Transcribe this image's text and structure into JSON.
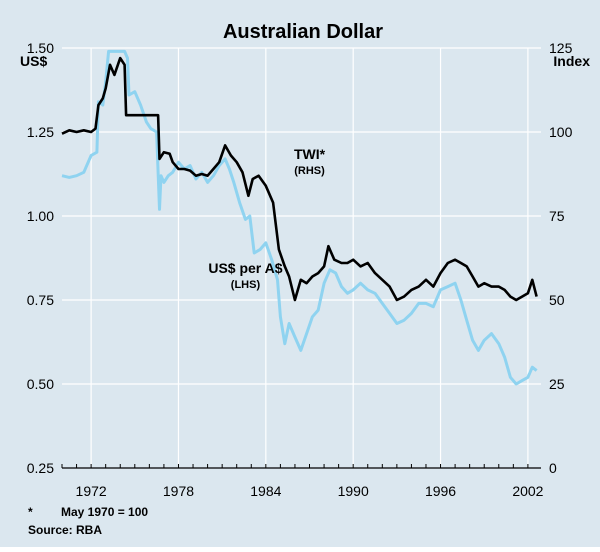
{
  "chart_data": {
    "type": "line",
    "title": "Australian Dollar",
    "left_axis": {
      "unit": "US$",
      "ylim": [
        0.25,
        1.5
      ],
      "ticks": [
        0.25,
        0.5,
        0.75,
        1.0,
        1.25,
        1.5
      ],
      "tick_labels": [
        "0.25",
        "0.50",
        "0.75",
        "1.00",
        "1.25",
        "1.50"
      ]
    },
    "right_axis": {
      "unit": "Index",
      "ylim": [
        0,
        125
      ],
      "ticks": [
        0,
        25,
        50,
        75,
        100,
        125
      ],
      "tick_labels": [
        "0",
        "25",
        "50",
        "75",
        "100",
        "125"
      ]
    },
    "x_axis": {
      "xlim": [
        1970.0,
        2002.9
      ],
      "ticks": [
        1972,
        1978,
        1984,
        1990,
        1996,
        2002
      ],
      "tick_labels": [
        "1972",
        "1978",
        "1984",
        "1990",
        "1996",
        "2002"
      ]
    },
    "grid": true,
    "series": [
      {
        "name": "US$ per A$",
        "sub": "(LHS)",
        "axis": "left",
        "color": "#8fd3f0",
        "label_pos": {
          "x": 1982.6,
          "y": 0.83
        },
        "points": [
          [
            1970.0,
            1.12
          ],
          [
            1970.5,
            1.115
          ],
          [
            1971.0,
            1.12
          ],
          [
            1971.5,
            1.13
          ],
          [
            1972.0,
            1.18
          ],
          [
            1972.4,
            1.19
          ],
          [
            1972.5,
            1.34
          ],
          [
            1972.8,
            1.33
          ],
          [
            1973.0,
            1.4
          ],
          [
            1973.2,
            1.49
          ],
          [
            1974.3,
            1.49
          ],
          [
            1974.5,
            1.47
          ],
          [
            1974.6,
            1.36
          ],
          [
            1975.0,
            1.37
          ],
          [
            1975.4,
            1.33
          ],
          [
            1975.8,
            1.28
          ],
          [
            1976.1,
            1.26
          ],
          [
            1976.5,
            1.25
          ],
          [
            1976.7,
            1.02
          ],
          [
            1976.8,
            1.12
          ],
          [
            1977.0,
            1.1
          ],
          [
            1977.3,
            1.12
          ],
          [
            1977.6,
            1.13
          ],
          [
            1978.0,
            1.16
          ],
          [
            1978.4,
            1.14
          ],
          [
            1978.8,
            1.15
          ],
          [
            1979.2,
            1.11
          ],
          [
            1979.6,
            1.13
          ],
          [
            1980.0,
            1.1
          ],
          [
            1980.4,
            1.12
          ],
          [
            1980.8,
            1.15
          ],
          [
            1981.2,
            1.17
          ],
          [
            1981.5,
            1.14
          ],
          [
            1981.8,
            1.1
          ],
          [
            1982.2,
            1.04
          ],
          [
            1982.6,
            0.99
          ],
          [
            1982.9,
            1.0
          ],
          [
            1983.2,
            0.89
          ],
          [
            1983.6,
            0.9
          ],
          [
            1984.0,
            0.92
          ],
          [
            1984.4,
            0.87
          ],
          [
            1984.8,
            0.81
          ],
          [
            1985.0,
            0.7
          ],
          [
            1985.3,
            0.62
          ],
          [
            1985.6,
            0.68
          ],
          [
            1986.0,
            0.64
          ],
          [
            1986.4,
            0.6
          ],
          [
            1986.8,
            0.65
          ],
          [
            1987.2,
            0.7
          ],
          [
            1987.6,
            0.72
          ],
          [
            1988.0,
            0.8
          ],
          [
            1988.4,
            0.84
          ],
          [
            1988.8,
            0.83
          ],
          [
            1989.2,
            0.79
          ],
          [
            1989.6,
            0.77
          ],
          [
            1990.0,
            0.78
          ],
          [
            1990.5,
            0.8
          ],
          [
            1991.0,
            0.78
          ],
          [
            1991.5,
            0.77
          ],
          [
            1992.0,
            0.74
          ],
          [
            1992.5,
            0.71
          ],
          [
            1993.0,
            0.68
          ],
          [
            1993.5,
            0.69
          ],
          [
            1994.0,
            0.71
          ],
          [
            1994.5,
            0.74
          ],
          [
            1995.0,
            0.74
          ],
          [
            1995.5,
            0.73
          ],
          [
            1996.0,
            0.78
          ],
          [
            1996.5,
            0.79
          ],
          [
            1997.0,
            0.8
          ],
          [
            1997.4,
            0.75
          ],
          [
            1997.8,
            0.69
          ],
          [
            1998.2,
            0.63
          ],
          [
            1998.6,
            0.6
          ],
          [
            1999.0,
            0.63
          ],
          [
            1999.5,
            0.65
          ],
          [
            2000.0,
            0.62
          ],
          [
            2000.4,
            0.58
          ],
          [
            2000.8,
            0.52
          ],
          [
            2001.2,
            0.5
          ],
          [
            2001.6,
            0.51
          ],
          [
            2002.0,
            0.52
          ],
          [
            2002.3,
            0.55
          ],
          [
            2002.6,
            0.54
          ]
        ]
      },
      {
        "name": "TWI*",
        "sub": "(RHS)",
        "axis": "right",
        "color": "#000000",
        "label_pos": {
          "x": 1987.0,
          "y": 92
        },
        "points": [
          [
            1970.0,
            99.5
          ],
          [
            1970.5,
            100.5
          ],
          [
            1971.0,
            100
          ],
          [
            1971.5,
            100.5
          ],
          [
            1972.0,
            100
          ],
          [
            1972.3,
            101
          ],
          [
            1972.5,
            108
          ],
          [
            1972.8,
            110
          ],
          [
            1973.0,
            113
          ],
          [
            1973.3,
            120
          ],
          [
            1973.6,
            117
          ],
          [
            1974.0,
            122
          ],
          [
            1974.3,
            120
          ],
          [
            1974.4,
            105
          ],
          [
            1976.6,
            105
          ],
          [
            1976.7,
            92
          ],
          [
            1977.0,
            94
          ],
          [
            1977.4,
            93.5
          ],
          [
            1977.6,
            91
          ],
          [
            1978.0,
            89
          ],
          [
            1978.4,
            89
          ],
          [
            1978.8,
            88.5
          ],
          [
            1979.2,
            87
          ],
          [
            1979.6,
            87.5
          ],
          [
            1980.0,
            87
          ],
          [
            1980.4,
            89
          ],
          [
            1980.8,
            91
          ],
          [
            1981.2,
            96
          ],
          [
            1981.6,
            93
          ],
          [
            1982.0,
            91
          ],
          [
            1982.4,
            88
          ],
          [
            1982.8,
            81
          ],
          [
            1983.1,
            86
          ],
          [
            1983.5,
            87
          ],
          [
            1984.0,
            84
          ],
          [
            1984.5,
            79
          ],
          [
            1984.9,
            65
          ],
          [
            1985.3,
            60
          ],
          [
            1985.6,
            57
          ],
          [
            1986.0,
            50
          ],
          [
            1986.4,
            56
          ],
          [
            1986.8,
            55
          ],
          [
            1987.2,
            57
          ],
          [
            1987.6,
            58
          ],
          [
            1988.0,
            60
          ],
          [
            1988.3,
            66
          ],
          [
            1988.7,
            62
          ],
          [
            1989.2,
            61
          ],
          [
            1989.6,
            61
          ],
          [
            1990.0,
            62
          ],
          [
            1990.5,
            60
          ],
          [
            1991.0,
            61
          ],
          [
            1991.5,
            58
          ],
          [
            1992.0,
            56
          ],
          [
            1992.5,
            54
          ],
          [
            1993.0,
            50
          ],
          [
            1993.5,
            51
          ],
          [
            1994.0,
            53
          ],
          [
            1994.5,
            54
          ],
          [
            1995.0,
            56
          ],
          [
            1995.5,
            54
          ],
          [
            1996.0,
            58
          ],
          [
            1996.5,
            61
          ],
          [
            1997.0,
            62
          ],
          [
            1997.4,
            61
          ],
          [
            1997.8,
            60
          ],
          [
            1998.2,
            57
          ],
          [
            1998.6,
            54
          ],
          [
            1999.0,
            55
          ],
          [
            1999.5,
            54
          ],
          [
            2000.0,
            54
          ],
          [
            2000.4,
            53
          ],
          [
            2000.8,
            51
          ],
          [
            2001.2,
            50
          ],
          [
            2001.6,
            51
          ],
          [
            2002.0,
            52
          ],
          [
            2002.3,
            56
          ],
          [
            2002.6,
            51
          ]
        ]
      }
    ],
    "footnotes": [
      "*",
      "May 1970 = 100",
      "Source:  RBA"
    ]
  }
}
